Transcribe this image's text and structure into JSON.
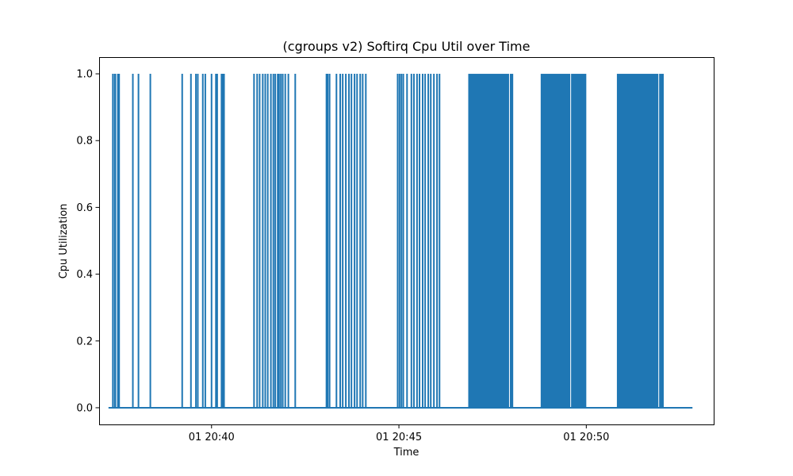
{
  "chart_data": {
    "type": "line",
    "title": "(cgroups v2) Softirq Cpu Util over Time",
    "xlabel": "Time",
    "ylabel": "Cpu Utilization",
    "x_range": [
      "01 20:37:00",
      "01 20:53:24"
    ],
    "ylim": [
      -0.05,
      1.05
    ],
    "grid": false,
    "legend": "none",
    "x_ticks": [
      {
        "time": "01 20:40:00",
        "label": "01 20:40"
      },
      {
        "time": "01 20:45:00",
        "label": "01 20:45"
      },
      {
        "time": "01 20:50:00",
        "label": "01 20:50"
      }
    ],
    "y_ticks": [
      {
        "value": 0.0,
        "label": "0.0"
      },
      {
        "value": 0.2,
        "label": "0.2"
      },
      {
        "value": 0.4,
        "label": "0.4"
      },
      {
        "value": 0.6,
        "label": "0.6"
      },
      {
        "value": 0.8,
        "label": "0.8"
      },
      {
        "value": 1.0,
        "label": "1.0"
      }
    ],
    "series": [
      {
        "color": "#1f77b4",
        "baseline": {
          "start": "01 20:37:15",
          "end": "01 20:52:50",
          "value": 0.0
        },
        "spikes_at_1": [
          "01 20:37:22",
          "01 20:37:25",
          "01 20:37:26",
          "01 20:37:30",
          "01 20:37:32",
          "01 20:37:54",
          "01 20:38:03",
          "01 20:38:22",
          "01 20:39:13",
          "01 20:39:27",
          "01 20:39:35",
          "01 20:39:38",
          "01 20:39:46",
          "01 20:39:50",
          "01 20:40:00",
          "01 20:40:07",
          "01 20:40:09",
          "01 20:40:16",
          "01 20:40:18",
          "01 20:40:20",
          "01 20:41:08",
          "01 20:41:13",
          "01 20:41:17",
          "01 20:41:22",
          "01 20:41:26",
          "01 20:41:30",
          "01 20:41:35",
          "01 20:41:39",
          "01 20:41:42",
          "01 20:41:46",
          "01 20:41:48",
          "01 20:41:51",
          "01 20:41:54",
          "01 20:41:58",
          "01 20:42:03",
          "01 20:42:14",
          "01 20:43:04",
          "01 20:43:06",
          "01 20:43:09",
          "01 20:43:20",
          "01 20:43:26",
          "01 20:43:30",
          "01 20:43:35",
          "01 20:43:40",
          "01 20:43:44",
          "01 20:43:49",
          "01 20:43:53",
          "01 20:43:58",
          "01 20:44:02",
          "01 20:44:07",
          "01 20:44:58",
          "01 20:45:01",
          "01 20:45:04",
          "01 20:45:07",
          "01 20:45:13",
          "01 20:45:20",
          "01 20:45:24",
          "01 20:45:29",
          "01 20:45:33",
          "01 20:45:38",
          "01 20:45:42",
          "01 20:45:47",
          "01 20:45:51",
          "01 20:45:56",
          "01 20:46:01",
          "01 20:46:05"
        ],
        "dense_blocks_at_1": [
          {
            "start": "01 20:46:51",
            "end": "01 20:48:03",
            "gaps": [
              "01 20:47:57"
            ]
          },
          {
            "start": "01 20:48:47",
            "end": "01 20:50:00",
            "gaps": [
              "01 20:49:35"
            ]
          },
          {
            "start": "01 20:50:49",
            "end": "01 20:52:04",
            "gaps": [
              "01 20:51:56"
            ]
          }
        ]
      }
    ]
  }
}
